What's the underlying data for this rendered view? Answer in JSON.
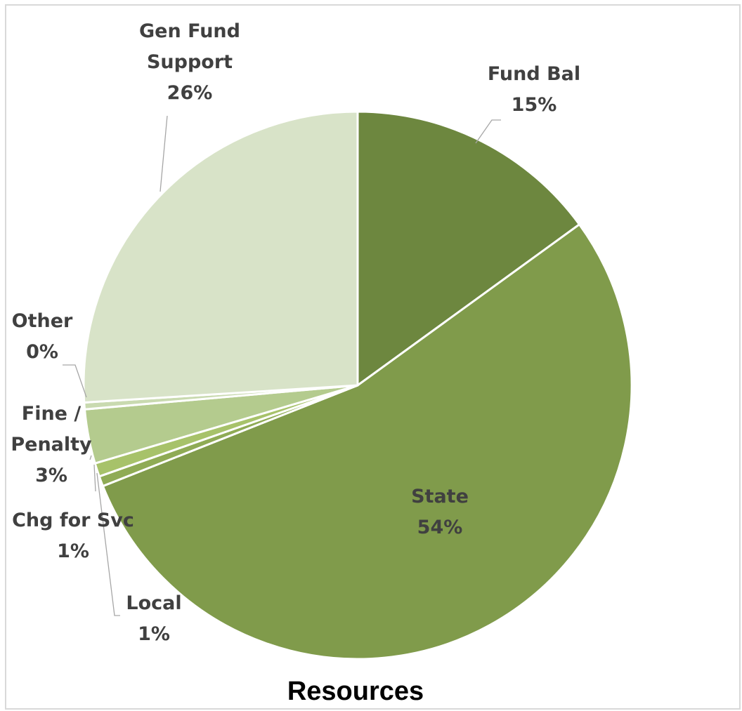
{
  "chart_data": {
    "type": "pie",
    "title": "Resources",
    "slices": [
      {
        "name": "Fund Bal",
        "label_lines": [
          "Fund Bal"
        ],
        "value": 15,
        "value_label": "15%",
        "color": "#6d873f"
      },
      {
        "name": "State",
        "label_lines": [
          "State"
        ],
        "value": 54,
        "value_label": "54%",
        "color": "#809b4b"
      },
      {
        "name": "Local",
        "label_lines": [
          "Local"
        ],
        "value": 0.6,
        "value_label": "1%",
        "color": "#8fab55"
      },
      {
        "name": "Chg for Svc",
        "label_lines": [
          "Chg for Svc"
        ],
        "value": 0.8,
        "value_label": "1%",
        "color": "#a7c26a"
      },
      {
        "name": "Fine / Penalty",
        "label_lines": [
          "Fine /",
          "Penalty"
        ],
        "value": 3.2,
        "value_label": "3%",
        "color": "#b4cb8e"
      },
      {
        "name": "Other",
        "label_lines": [
          "Other"
        ],
        "value": 0.4,
        "value_label": "0%",
        "color": "#c9dab0"
      },
      {
        "name": "Gen Fund Support",
        "label_lines": [
          "Gen Fund",
          "Support"
        ],
        "value": 26,
        "value_label": "26%",
        "color": "#d8e3c8"
      }
    ],
    "legend": "none",
    "data_labels": "outside-with-leader-lines"
  }
}
